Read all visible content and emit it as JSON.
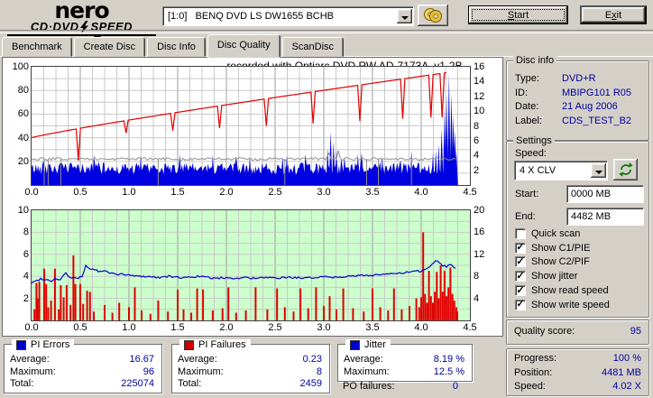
{
  "brand": {
    "name": "nero",
    "product_left": "CD·DVD",
    "product_right": "SPEED"
  },
  "icons": {
    "bolt-icon": "lightning bolt glyph in logo",
    "discs-icon": "two overlapping gold CDs",
    "combo-arrow-icon": "black down caret ▼",
    "refresh-icon": "green circular refresh arrows ↻",
    "checkbox-check": "✓"
  },
  "toolbar": {
    "drive_select": "[1:0]   BENQ DVD LS DW1655 BCHB",
    "start": {
      "label": "Start",
      "accel": 0
    },
    "exit": {
      "label": "Exit",
      "accel": 1
    }
  },
  "tabs": [
    {
      "label": "Benchmark",
      "active": false
    },
    {
      "label": "Create Disc",
      "active": false
    },
    {
      "label": "Disc Info",
      "active": false
    },
    {
      "label": "Disc Quality",
      "active": true
    },
    {
      "label": "ScanDisc",
      "active": false
    }
  ],
  "disc_info": {
    "legend": "Disc info",
    "rows": [
      {
        "label": "Type:",
        "value": "DVD+R"
      },
      {
        "label": "ID:",
        "value": "MBIPG101 R05"
      },
      {
        "label": "Date:",
        "value": "21 Aug 2006"
      },
      {
        "label": "Label:",
        "value": "CDS_TEST_B2"
      }
    ]
  },
  "settings": {
    "legend": "Settings",
    "speed_label": "Speed:",
    "speed_value": "4 X CLV",
    "start_label": "Start:",
    "start_value": "0000 MB",
    "end_label": "End:",
    "end_value": "4482 MB",
    "checkboxes": [
      {
        "label": "Quick scan",
        "checked": false
      },
      {
        "label": "Show C1/PIE",
        "checked": true
      },
      {
        "label": "Show C2/PIF",
        "checked": true
      },
      {
        "label": "Show jitter",
        "checked": true
      },
      {
        "label": "Show read speed",
        "checked": true
      },
      {
        "label": "Show write speed",
        "checked": true
      }
    ]
  },
  "quality": {
    "label": "Quality score:",
    "value": "95"
  },
  "progress": {
    "rows": [
      {
        "label": "Progress:",
        "value": "100 %"
      },
      {
        "label": "Position:",
        "value": "4481 MB"
      },
      {
        "label": "Speed:",
        "value": "4.02 X"
      }
    ]
  },
  "stats": {
    "pi_errors": {
      "title": "PI Errors",
      "swatch": "#0000cc",
      "rows": [
        {
          "label": "Average:",
          "value": "16.67"
        },
        {
          "label": "Maximum:",
          "value": "96"
        },
        {
          "label": "Total:",
          "value": "225074"
        }
      ]
    },
    "pi_failures": {
      "title": "PI Failures",
      "swatch": "#cc0000",
      "rows": [
        {
          "label": "Average:",
          "value": "0.23"
        },
        {
          "label": "Maximum:",
          "value": "8"
        },
        {
          "label": "Total:",
          "value": "2459"
        }
      ]
    },
    "jitter": {
      "title": "Jitter",
      "swatch": "#0000cc",
      "rows": [
        {
          "label": "Average:",
          "value": "8.19 %"
        },
        {
          "label": "Maximum:",
          "value": "12.5 %"
        }
      ]
    },
    "po_failures": {
      "label": "PO failures:",
      "value": "0"
    }
  },
  "chart_data": [
    {
      "type": "area",
      "title": "recorded with Optiarc DVD RW AD-7173A  v1-2B",
      "x_range": [
        0,
        4.5
      ],
      "x_ticks": [
        "0.0",
        "0.5",
        "1.0",
        "1.5",
        "2.0",
        "2.5",
        "3.0",
        "3.5",
        "4.0",
        "4.5"
      ],
      "grid": {
        "x_minor_step": 0.125,
        "x_major_step": 0.5,
        "y_divisions": 10
      },
      "left_axis": {
        "range": [
          0,
          100
        ],
        "ticks": [
          100,
          80,
          60,
          40,
          20
        ]
      },
      "right_axis": {
        "range": [
          0,
          16
        ],
        "ticks": [
          16,
          14,
          12,
          10,
          8,
          6,
          4,
          2
        ]
      },
      "series": [
        {
          "name": "PI Errors",
          "type": "noise_area",
          "color": "#0000e0",
          "x_end": 4.37,
          "base": 9,
          "amp": 10,
          "spikes": [
            [
              0.64,
              26
            ],
            [
              1.12,
              25
            ],
            [
              1.86,
              26
            ],
            [
              2.24,
              24
            ],
            [
              2.62,
              25
            ],
            [
              3.04,
              31
            ],
            [
              3.07,
              45
            ],
            [
              3.1,
              37
            ],
            [
              3.13,
              29
            ],
            [
              3.35,
              27
            ],
            [
              3.6,
              25
            ],
            [
              3.9,
              29
            ],
            [
              4.12,
              27
            ],
            [
              4.15,
              29
            ],
            [
              4.18,
              34
            ],
            [
              4.21,
              48
            ],
            [
              4.24,
              62
            ],
            [
              4.26,
              76
            ],
            [
              4.285,
              94
            ],
            [
              4.31,
              78
            ],
            [
              4.33,
              60
            ],
            [
              4.345,
              46
            ],
            [
              4.36,
              30
            ]
          ]
        },
        {
          "name": "read speed",
          "type": "level_line",
          "color": "#909090",
          "level": 22,
          "x_end": 4.37,
          "drops": [
            0.13,
            0.17,
            0.3,
            1.3,
            2.6,
            3.44,
            3.56,
            3.9
          ],
          "bumps": [
            [
              3.05,
              29
            ],
            [
              3.15,
              30
            ]
          ]
        },
        {
          "name": "write speed",
          "type": "ramp_line",
          "color": "#e00000",
          "x_end": 4.26,
          "y_start": 40,
          "y_end": 95,
          "dips": [
            [
              0.48,
              21
            ],
            [
              0.97,
              44
            ],
            [
              1.45,
              46
            ],
            [
              1.93,
              48
            ],
            [
              2.41,
              50
            ],
            [
              2.89,
              52
            ],
            [
              3.37,
              54
            ],
            [
              3.81,
              56
            ],
            [
              4.1,
              57
            ],
            [
              4.215,
              57
            ]
          ]
        }
      ]
    },
    {
      "type": "bars_line",
      "bg": "#ccffcc",
      "x_range": [
        0,
        4.5
      ],
      "x_ticks": [
        "0.0",
        "0.5",
        "1.0",
        "1.5",
        "2.0",
        "2.5",
        "3.0",
        "3.5",
        "4.0",
        "4.5"
      ],
      "grid": {
        "x_minor_step": 0.125,
        "x_major_step": 0.5,
        "y_divisions": 10
      },
      "left_axis": {
        "range": [
          0,
          10
        ],
        "ticks": [
          10,
          8,
          6,
          4,
          2
        ]
      },
      "right_axis": {
        "range": [
          0,
          20
        ],
        "ticks": [
          20,
          16,
          12,
          8,
          4
        ]
      },
      "series": [
        {
          "name": "PI Failures",
          "type": "bars",
          "color": "#e00000",
          "bars": [
            [
              0.03,
              1.0
            ],
            [
              0.05,
              3.4
            ],
            [
              0.06,
              2.0
            ],
            [
              0.08,
              3.5
            ],
            [
              0.13,
              4.7
            ],
            [
              0.15,
              3.3
            ],
            [
              0.17,
              1.2
            ],
            [
              0.2,
              1.8
            ],
            [
              0.24,
              4.7
            ],
            [
              0.28,
              1.0
            ],
            [
              0.3,
              3.2
            ],
            [
              0.33,
              2.1
            ],
            [
              0.36,
              3.2
            ],
            [
              0.4,
              1.4
            ],
            [
              0.43,
              5.9
            ],
            [
              0.45,
              3.3
            ],
            [
              0.5,
              3.3
            ],
            [
              0.53,
              1.5
            ],
            [
              0.57,
              2.7
            ],
            [
              0.6,
              2.6
            ],
            [
              0.64,
              0.8
            ],
            [
              0.75,
              1.4
            ],
            [
              0.83,
              0.7
            ],
            [
              0.9,
              1.6
            ],
            [
              1.0,
              1.2
            ],
            [
              1.06,
              3.0
            ],
            [
              1.13,
              0.9
            ],
            [
              1.22,
              0.6
            ],
            [
              1.3,
              1.8
            ],
            [
              1.4,
              0.8
            ],
            [
              1.5,
              2.8
            ],
            [
              1.56,
              1.0
            ],
            [
              1.64,
              0.7
            ],
            [
              1.7,
              2.9
            ],
            [
              1.76,
              2.8
            ],
            [
              1.86,
              0.9
            ],
            [
              1.96,
              1.1
            ],
            [
              2.02,
              3.0
            ],
            [
              2.1,
              0.7
            ],
            [
              2.2,
              0.9
            ],
            [
              2.3,
              3.0
            ],
            [
              2.42,
              1.0
            ],
            [
              2.52,
              2.9
            ],
            [
              2.6,
              1.2
            ],
            [
              2.69,
              0.8
            ],
            [
              2.76,
              2.9
            ],
            [
              2.84,
              1.1
            ],
            [
              2.92,
              3.0
            ],
            [
              3.0,
              1.3
            ],
            [
              3.06,
              2.2
            ],
            [
              3.13,
              1.0
            ],
            [
              3.2,
              2.9
            ],
            [
              3.3,
              1.1
            ],
            [
              3.41,
              0.8
            ],
            [
              3.5,
              2.9
            ],
            [
              3.58,
              1.2
            ],
            [
              3.66,
              0.9
            ],
            [
              3.72,
              2.9
            ],
            [
              3.8,
              1.0
            ],
            [
              3.88,
              1.3
            ],
            [
              3.95,
              2.0
            ],
            [
              3.98,
              1.2
            ],
            [
              4.0,
              2.1
            ],
            [
              4.02,
              8.0
            ],
            [
              4.04,
              2.4
            ],
            [
              4.06,
              1.6
            ],
            [
              4.08,
              4.5
            ],
            [
              4.1,
              2.2
            ],
            [
              4.12,
              1.6
            ],
            [
              4.14,
              2.6
            ],
            [
              4.16,
              4.4
            ],
            [
              4.18,
              2.0
            ],
            [
              4.2,
              5.0
            ],
            [
              4.22,
              2.6
            ],
            [
              4.24,
              4.5
            ],
            [
              4.26,
              2.2
            ],
            [
              4.28,
              3.0
            ],
            [
              4.3,
              4.8
            ],
            [
              4.32,
              2.4
            ],
            [
              4.34,
              1.8
            ],
            [
              4.36,
              1.2
            ],
            [
              4.37,
              0.8
            ]
          ]
        },
        {
          "name": "Jitter",
          "type": "line",
          "color": "#0000cc",
          "points": [
            [
              0.0,
              3.4
            ],
            [
              0.05,
              3.6
            ],
            [
              0.1,
              3.8
            ],
            [
              0.15,
              3.7
            ],
            [
              0.2,
              3.6
            ],
            [
              0.25,
              3.8
            ],
            [
              0.3,
              3.7
            ],
            [
              0.35,
              4.4
            ],
            [
              0.38,
              3.9
            ],
            [
              0.45,
              3.8
            ],
            [
              0.5,
              3.9
            ],
            [
              0.53,
              4.1
            ],
            [
              0.55,
              5.0
            ],
            [
              0.6,
              4.7
            ],
            [
              0.65,
              4.6
            ],
            [
              0.7,
              4.4
            ],
            [
              0.75,
              4.5
            ],
            [
              0.8,
              4.3
            ],
            [
              0.9,
              4.2
            ],
            [
              1.0,
              4.1
            ],
            [
              1.1,
              4.0
            ],
            [
              1.2,
              4.0
            ],
            [
              1.3,
              3.9
            ],
            [
              1.4,
              4.0
            ],
            [
              1.5,
              3.9
            ],
            [
              1.6,
              3.9
            ],
            [
              1.7,
              4.0
            ],
            [
              1.8,
              3.9
            ],
            [
              1.9,
              3.8
            ],
            [
              2.0,
              3.9
            ],
            [
              2.1,
              3.8
            ],
            [
              2.2,
              3.9
            ],
            [
              2.3,
              3.8
            ],
            [
              2.4,
              3.9
            ],
            [
              2.5,
              3.8
            ],
            [
              2.6,
              3.9
            ],
            [
              2.7,
              3.9
            ],
            [
              2.8,
              3.8
            ],
            [
              2.9,
              3.9
            ],
            [
              3.0,
              4.0
            ],
            [
              3.1,
              3.9
            ],
            [
              3.2,
              4.0
            ],
            [
              3.3,
              4.0
            ],
            [
              3.4,
              4.1
            ],
            [
              3.5,
              4.1
            ],
            [
              3.6,
              4.2
            ],
            [
              3.7,
              4.2
            ],
            [
              3.8,
              4.3
            ],
            [
              3.9,
              4.4
            ],
            [
              4.0,
              4.5
            ],
            [
              4.05,
              4.6
            ],
            [
              4.1,
              5.0
            ],
            [
              4.15,
              5.5
            ],
            [
              4.18,
              5.3
            ],
            [
              4.22,
              5.0
            ],
            [
              4.26,
              4.9
            ],
            [
              4.3,
              5.1
            ],
            [
              4.34,
              4.8
            ],
            [
              4.37,
              4.8
            ]
          ]
        }
      ]
    }
  ]
}
